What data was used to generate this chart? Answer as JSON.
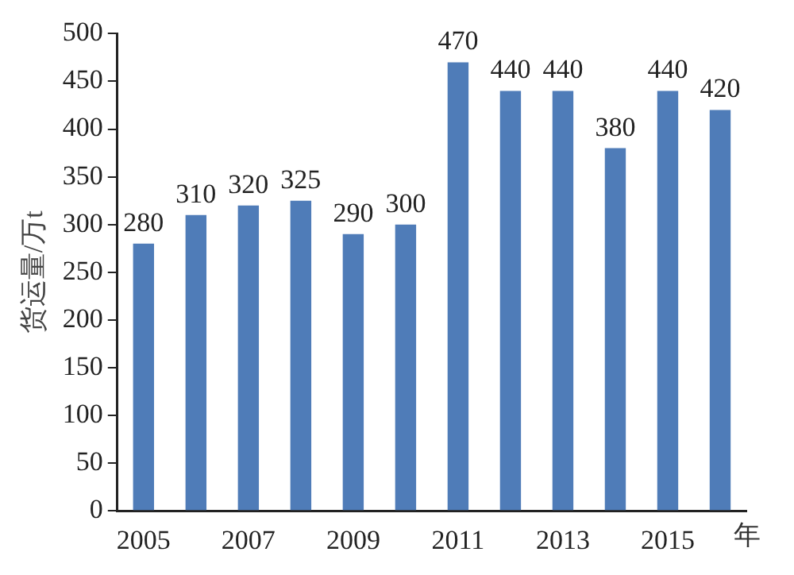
{
  "chart_data": {
    "type": "bar",
    "xlabel": "年",
    "ylabel": "货运量/万t",
    "categories": [
      "2005",
      null,
      "2007",
      null,
      "2009",
      null,
      "2011",
      null,
      "2013",
      null,
      "2015",
      null
    ],
    "values": [
      280,
      310,
      320,
      325,
      290,
      300,
      470,
      440,
      440,
      380,
      440,
      420
    ],
    "color": "#4f7cb8",
    "ylim": [
      0,
      500
    ],
    "yticks": [
      0,
      50,
      100,
      150,
      200,
      250,
      300,
      350,
      400,
      450,
      500
    ],
    "grid": false,
    "data_labels": true
  }
}
